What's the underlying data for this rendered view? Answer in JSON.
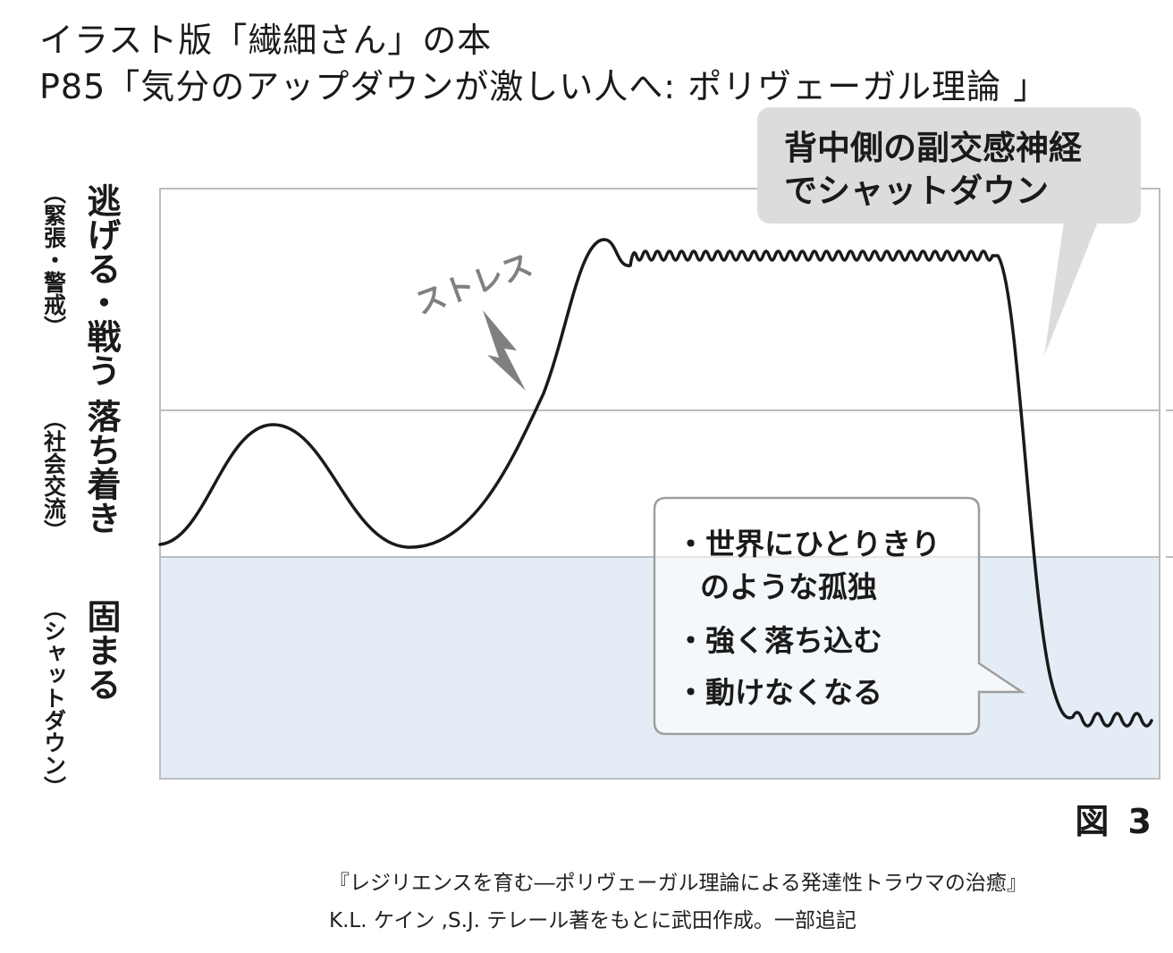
{
  "header": {
    "title_line1": "イラスト版「繊細さん」の本",
    "title_line2": "P85「気分のアップダウンが激しい人へ: ポリヴェーガル理論 」"
  },
  "diagram": {
    "levels": [
      {
        "main": "逃げる・戦う",
        "sub": "（緊張・警戒）"
      },
      {
        "main": "落ち着き",
        "sub": "（社会交流）"
      },
      {
        "main": "固まる",
        "sub": "（シャットダウン）"
      }
    ],
    "stress_label": "ストレス",
    "callout_top": [
      "背中側の副交感神経",
      "でシャットダウン"
    ],
    "callout_bottom": [
      "・世界にひとりきり",
      "のような孤独",
      "・強く落ち込む",
      "・動けなくなる"
    ],
    "figure_label": "図 3",
    "colors": {
      "shutdown_zone": "#e4edf6",
      "callout_fill": "#dcdcdc",
      "grid": "#bdbdbd",
      "curve": "#1a1a1a",
      "stress": "#808080"
    }
  },
  "source": {
    "line1": "『レジリエンスを育む―ポリヴェーガル理論による発達性トラウマの治癒』",
    "line2": "K.L. ケイン ,S.J. テレール著をもとに武田作成。一部追記"
  }
}
